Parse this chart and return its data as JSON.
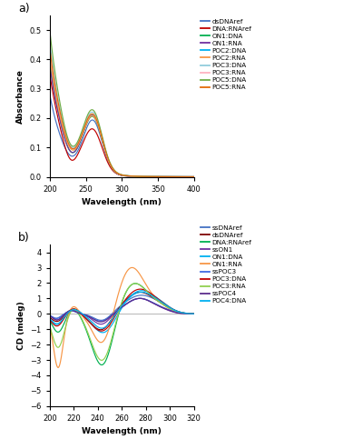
{
  "panel_a": {
    "xlabel": "Wavelength (nm)",
    "ylabel": "Absorbance",
    "xlim": [
      200,
      400
    ],
    "ylim": [
      0,
      0.55
    ],
    "yticks": [
      0.0,
      0.1,
      0.2,
      0.3,
      0.4,
      0.5
    ],
    "xticks": [
      200,
      250,
      300,
      350,
      400
    ],
    "legend": [
      "dsDNAref",
      "DNA:RNAref",
      "ON1:DNA",
      "ON1:RNA",
      "POC2:DNA",
      "POC2:RNA",
      "POC3:DNA",
      "POC3:RNA",
      "POC5:DNA",
      "POC5:RNA"
    ],
    "uv_params": {
      "dsDNAref": [
        0.28,
        0.065,
        0.175,
        0.17
      ],
      "DNA:RNAref": [
        0.35,
        0.055,
        0.14,
        0.135
      ],
      "ON1:DNA": [
        0.39,
        0.08,
        0.18,
        0.18
      ],
      "ON1:RNA": [
        0.38,
        0.08,
        0.185,
        0.185
      ],
      "POC2:DNA": [
        0.42,
        0.095,
        0.185,
        0.185
      ],
      "POC2:RNA": [
        0.41,
        0.09,
        0.18,
        0.18
      ],
      "POC3:DNA": [
        0.46,
        0.1,
        0.19,
        0.19
      ],
      "POC3:RNA": [
        0.43,
        0.095,
        0.185,
        0.185
      ],
      "POC5:DNA": [
        0.5,
        0.105,
        0.195,
        0.195
      ],
      "POC5:RNA": [
        0.44,
        0.095,
        0.185,
        0.185
      ]
    },
    "uv_colors": {
      "dsDNAref": "#4472c4",
      "DNA:RNAref": "#c00000",
      "ON1:DNA": "#00b050",
      "ON1:RNA": "#7030a0",
      "POC2:DNA": "#00b0f0",
      "POC2:RNA": "#f79646",
      "POC3:DNA": "#92cddc",
      "POC3:RNA": "#ffb3c1",
      "POC5:DNA": "#70ad47",
      "POC5:RNA": "#e36c09"
    }
  },
  "panel_b": {
    "xlabel": "Wavelength (nm)",
    "ylabel": "CD (mdeg)",
    "xlim": [
      200,
      320
    ],
    "ylim": [
      -6,
      4.5
    ],
    "yticks": [
      -6,
      -5,
      -4,
      -3,
      -2,
      -1,
      0,
      1,
      2,
      3,
      4
    ],
    "xticks": [
      200,
      220,
      240,
      260,
      280,
      300,
      320
    ],
    "legend": [
      "ssDNAref",
      "dsDNAref",
      "DNA:RNAref",
      "ssON1",
      "ON1:DNA",
      "ON1:RNA",
      "ssPOC3",
      "POC3:DNA",
      "POC3:RNA",
      "ssPOC4",
      "POC4:DNA"
    ],
    "cd_colors": {
      "ssDNAref": "#4472c4",
      "dsDNAref": "#7f0000",
      "DNA:RNAref": "#00b050",
      "ssON1": "#7030a0",
      "ON1:DNA": "#00b0f0",
      "ON1:RNA": "#f79646",
      "ssPOC3": "#4169e1",
      "POC3:DNA": "#c00000",
      "POC3:RNA": "#92d050",
      "ssPOC4": "#5c2d8c",
      "POC4:DNA": "#00b0f0"
    }
  }
}
